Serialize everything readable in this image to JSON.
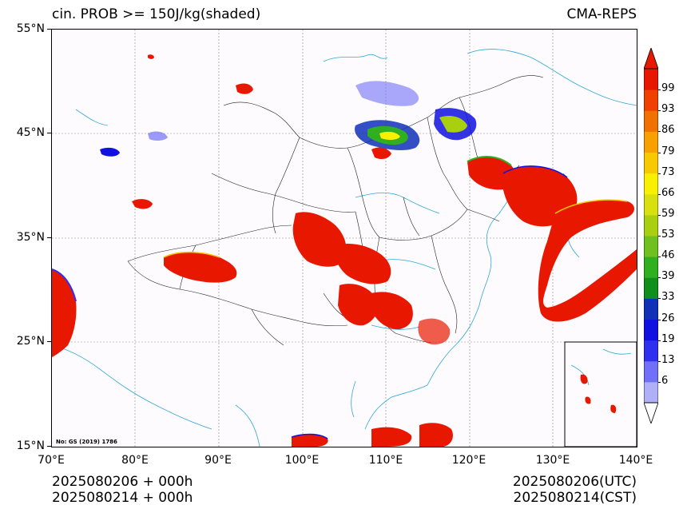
{
  "title": {
    "left": "cin. PROB >= 150J/kg(shaded)",
    "right": "CMA-REPS"
  },
  "axes": {
    "lat_labels": [
      "55°N",
      "45°N",
      "35°N",
      "25°N",
      "15°N"
    ],
    "lon_labels": [
      "70°E",
      "80°E",
      "90°E",
      "100°E",
      "110°E",
      "120°E",
      "130°E",
      "140°E"
    ]
  },
  "footer": {
    "left_line1": "2025080206  +  000h",
    "left_line2": "2025080214  +  000h",
    "right_line1": "2025080206(UTC)",
    "right_line2": "2025080214(CST)"
  },
  "map_notice": "No: GS (2019) 1786",
  "colorbar": {
    "labels": [
      "99",
      "93",
      "86",
      "79",
      "73",
      "66",
      "59",
      "53",
      "46",
      "39",
      "33",
      "26",
      "19",
      "13",
      "6"
    ],
    "colors": [
      "#b0b0f8",
      "#7070f8",
      "#3030f0",
      "#1010e0",
      "#1030b8",
      "#10901a",
      "#30b020",
      "#70c020",
      "#a8d010",
      "#d8e010",
      "#f8f000",
      "#f8c800",
      "#f8a000",
      "#f07000",
      "#f04000",
      "#e81800"
    ],
    "overflow_color": "#e81800",
    "underflow_color": "#ffffff"
  },
  "chart_data": {
    "type": "map",
    "title": "cin. PROB >= 150J/kg(shaded)",
    "xlim": [
      70,
      140
    ],
    "ylim": [
      15,
      55
    ],
    "xlabel": "",
    "ylabel": "",
    "levels": [
      6,
      13,
      19,
      26,
      33,
      39,
      46,
      53,
      59,
      66,
      73,
      79,
      86,
      93,
      99
    ],
    "grid": true,
    "inset": "South China Sea (lower right)"
  }
}
